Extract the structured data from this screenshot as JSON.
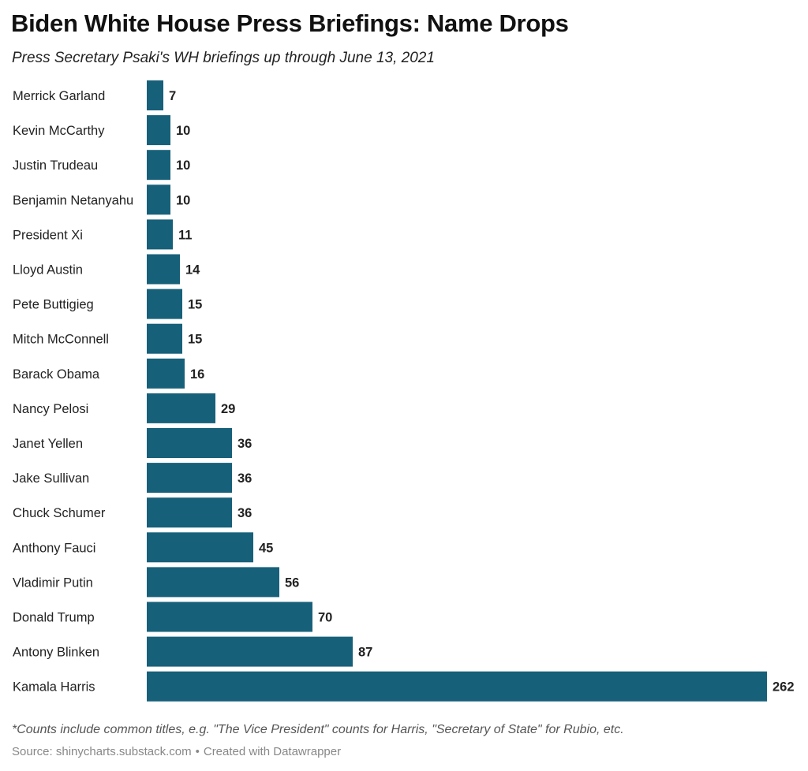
{
  "title": "Biden White House Press Briefings: Name Drops",
  "subtitle": "Press Secretary Psaki's WH briefings up through June 13, 2021",
  "footnote": "*Counts include common titles, e.g. \"The Vice President\" counts for Harris, \"Secretary of State\" for Rubio, etc.",
  "source": {
    "text": "Source: shinycharts.substack.com",
    "separator": "•",
    "credit": "Created with Datawrapper"
  },
  "colors": {
    "bar": "#17607a",
    "label": "#222222",
    "value": "#222222"
  },
  "chart_data": {
    "type": "bar",
    "orientation": "horizontal",
    "categories": [
      "Merrick Garland",
      "Kevin McCarthy",
      "Justin Trudeau",
      "Benjamin Netanyahu",
      "President Xi",
      "Lloyd Austin",
      "Pete Buttigieg",
      "Mitch McConnell",
      "Barack Obama",
      "Nancy Pelosi",
      "Janet Yellen",
      "Jake Sullivan",
      "Chuck Schumer",
      "Anthony Fauci",
      "Vladimir Putin",
      "Donald Trump",
      "Antony Blinken",
      "Kamala Harris"
    ],
    "values": [
      7,
      10,
      10,
      10,
      11,
      14,
      15,
      15,
      16,
      29,
      36,
      36,
      36,
      45,
      56,
      70,
      87,
      262
    ],
    "xlim": [
      0,
      262
    ],
    "grid": false,
    "legend": false
  }
}
